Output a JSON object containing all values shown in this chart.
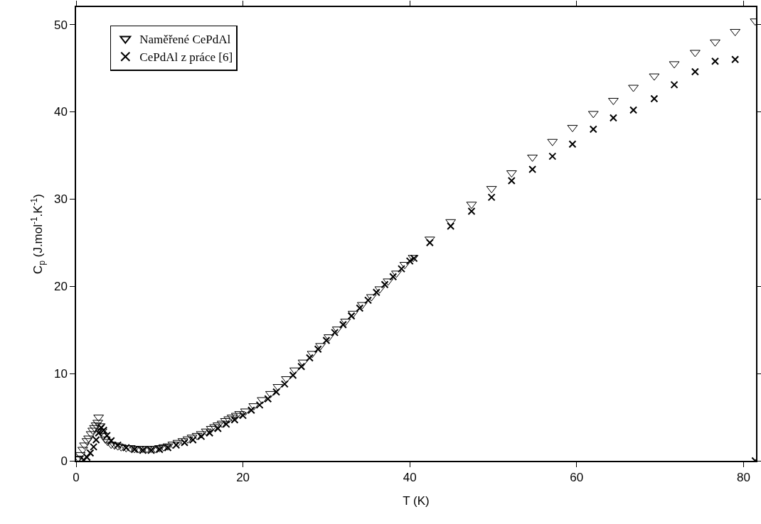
{
  "chart_data": {
    "type": "scatter",
    "xlabel": "T (K)",
    "ylabel": "C$_{p}$ (J.mol$^{-1}$.K$^{-1}$)",
    "xlim": [
      0,
      81.5
    ],
    "xticks": [
      0,
      20,
      40,
      60,
      80
    ],
    "ylim": [
      0,
      52
    ],
    "yticks": [
      0,
      10,
      20,
      30,
      40,
      50
    ],
    "grid": false,
    "legend": "top left",
    "series": [
      {
        "name": "Naměřené CePdAl",
        "color": "#000000",
        "marker": "triangle",
        "x": [
          0.1,
          0.3,
          0.5,
          0.8,
          1.0,
          1.3,
          1.5,
          1.8,
          2.0,
          2.2,
          2.4,
          2.6,
          2.7,
          2.9,
          3.1,
          3.3,
          3.5,
          3.8,
          4.2,
          4.6,
          5.0,
          5.4,
          6.0,
          6.5,
          7.0,
          7.5,
          8.0,
          8.5,
          9.0,
          9.5,
          10.0,
          10.5,
          11.0,
          11.6,
          12.2,
          12.8,
          13.4,
          13.9,
          14.5,
          15.0,
          15.6,
          16.2,
          16.6,
          17.0,
          17.5,
          17.9,
          18.3,
          18.7,
          19.2,
          19.6,
          20.3,
          21.3,
          22.3,
          23.3,
          24.2,
          25.2,
          26.2,
          27.2,
          28.3,
          29.3,
          30.3,
          31.3,
          32.3,
          33.2,
          34.3,
          35.4,
          36.4,
          37.4,
          38.4,
          39.4,
          40.4,
          42.4,
          44.9,
          47.4,
          49.8,
          52.2,
          54.7,
          57.1,
          59.5,
          62.0,
          64.4,
          66.8,
          69.3,
          71.7,
          74.2,
          76.6,
          79.0,
          81.4
        ],
        "values": [
          0.2,
          0.3,
          0.7,
          1.3,
          1.8,
          2.3,
          2.6,
          3.1,
          3.5,
          3.8,
          4.1,
          4.4,
          5.0,
          4.0,
          3.4,
          2.9,
          2.5,
          2.2,
          1.9,
          1.8,
          1.7,
          1.6,
          1.5,
          1.5,
          1.4,
          1.4,
          1.4,
          1.4,
          1.4,
          1.4,
          1.5,
          1.6,
          1.7,
          1.9,
          2.1,
          2.3,
          2.5,
          2.7,
          2.9,
          3.1,
          3.4,
          3.7,
          3.9,
          4.1,
          4.3,
          4.6,
          4.8,
          5.0,
          5.2,
          5.4,
          5.7,
          6.3,
          7.0,
          7.7,
          8.5,
          9.4,
          10.4,
          11.3,
          12.3,
          13.2,
          14.2,
          15.1,
          16.0,
          16.9,
          17.9,
          18.8,
          19.7,
          20.6,
          21.5,
          22.5,
          23.3,
          25.4,
          27.4,
          29.4,
          31.2,
          33.0,
          34.8,
          36.6,
          38.2,
          39.8,
          41.3,
          42.8,
          44.1,
          45.5,
          46.8,
          48.0,
          49.2,
          50.4
        ]
      },
      {
        "name": "CePdAl z práce [6]",
        "color": "#000000",
        "marker": "cross",
        "x": [
          0.9,
          1.3,
          1.7,
          2.1,
          2.4,
          2.7,
          3.0,
          3.3,
          3.7,
          4.2,
          5.0,
          6.0,
          7.0,
          8.0,
          9.0,
          10.0,
          11.0,
          12.0,
          13.0,
          14.0,
          15.0,
          16.0,
          17.0,
          18.0,
          19.0,
          20.0,
          21.0,
          22.0,
          23.0,
          24.0,
          25.0,
          26.0,
          27.0,
          28.0,
          29.0,
          30.0,
          31.0,
          32.0,
          33.0,
          34.0,
          35.0,
          36.0,
          37.0,
          38.0,
          39.0,
          40.0,
          40.5,
          42.4,
          44.9,
          47.4,
          49.8,
          52.2,
          54.7,
          57.1,
          59.5,
          62.0,
          64.4,
          66.8,
          69.3,
          71.7,
          74.2,
          76.6,
          79.0,
          81.4
        ],
        "values": [
          0.1,
          0.4,
          0.9,
          1.6,
          2.4,
          3.2,
          3.8,
          3.5,
          2.9,
          2.3,
          1.8,
          1.5,
          1.3,
          1.2,
          1.2,
          1.3,
          1.5,
          1.8,
          2.1,
          2.4,
          2.8,
          3.2,
          3.7,
          4.2,
          4.7,
          5.2,
          5.8,
          6.4,
          7.1,
          7.9,
          8.8,
          9.8,
          10.8,
          11.8,
          12.8,
          13.8,
          14.7,
          15.6,
          16.6,
          17.5,
          18.4,
          19.3,
          20.2,
          21.1,
          22.0,
          22.9,
          23.2,
          25.0,
          26.9,
          28.6,
          30.2,
          32.1,
          33.4,
          34.9,
          36.3,
          38.0,
          39.3,
          40.2,
          41.5,
          43.1,
          44.6,
          45.8,
          46.0,
          0
        ]
      }
    ]
  }
}
